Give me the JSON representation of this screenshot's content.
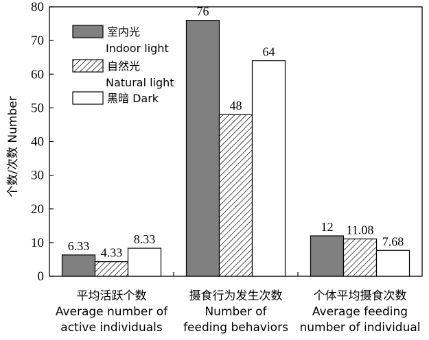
{
  "chart_data": {
    "type": "bar",
    "ylabel": "个数/次数 Number",
    "ylim": [
      0,
      80
    ],
    "yticks": [
      0,
      10,
      20,
      30,
      40,
      50,
      60,
      70,
      80
    ],
    "categories": [
      {
        "zh": "平均活跃个数",
        "en1": "Average number of",
        "en2": "active individuals"
      },
      {
        "zh": "摄食行为发生次数",
        "en1": "Number of",
        "en2": "feeding behaviors"
      },
      {
        "zh": "个体平均摄食次数",
        "en1": "Average feeding",
        "en2": "number of individual"
      }
    ],
    "series": [
      {
        "name_zh": "室内光",
        "name_en": "Indoor light",
        "fill": "#808080",
        "pattern": "solid",
        "values": [
          6.33,
          76,
          12
        ],
        "labels": [
          "6.33",
          "76",
          "12"
        ]
      },
      {
        "name_zh": "自然光",
        "name_en": "Natural light",
        "fill": "#ffffff",
        "pattern": "hatch",
        "values": [
          4.33,
          48,
          11.08
        ],
        "labels": [
          "4.33",
          "48",
          "11.08"
        ]
      },
      {
        "name_zh": "黑暗",
        "name_en": "Dark",
        "fill": "#ffffff",
        "pattern": "none",
        "values": [
          8.33,
          64,
          7.68
        ],
        "labels": [
          "8.33",
          "64",
          "7.68"
        ]
      }
    ],
    "legend_position": "top-left",
    "grid": false
  }
}
